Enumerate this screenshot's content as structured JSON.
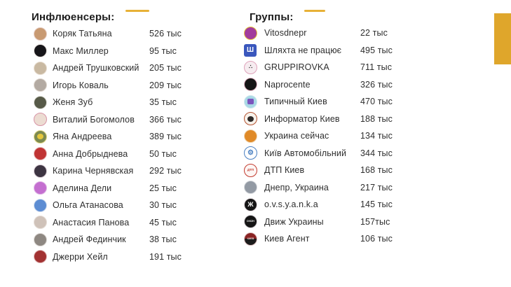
{
  "accent": {
    "dash_color": "#E7B137",
    "side_bar_color": "#DFA62B"
  },
  "influencers": {
    "title": "Инфлюенсеры:",
    "rows": [
      {
        "name": "Коряк Татьяна",
        "count": "526 тыс",
        "avatar": {
          "bg": "#c89a72",
          "ring": "#e6cdc4"
        }
      },
      {
        "name": "Макс Миллер",
        "count": "95 тыс",
        "avatar": {
          "bg": "#17161a",
          "ring": "#e8e2de"
        }
      },
      {
        "name": "Андрей Трушковский",
        "count": "205 тыс",
        "avatar": {
          "bg": "#c9b9a2",
          "ring": "#e8ddd0"
        }
      },
      {
        "name": "Игорь Коваль",
        "count": "209 тыс",
        "avatar": {
          "bg": "#b3aaa2",
          "ring": "#ded6ce"
        }
      },
      {
        "name": "Женя Зуб",
        "count": "35 тыс",
        "avatar": {
          "bg": "#575a48",
          "ring": "#dfe0d8"
        }
      },
      {
        "name": "Виталий Богомолов",
        "count": "366 тыс",
        "avatar": {
          "bg": "#ecdcd2",
          "ring": "#d793a5"
        }
      },
      {
        "name": "Яна Андреева",
        "count": "389 тыс",
        "avatar": {
          "bg": "#7c8a50",
          "ring": "#e4d98a",
          "inner": "#e6c73c"
        }
      },
      {
        "name": "Анна Добрыднева",
        "count": "50 тыс",
        "avatar": {
          "bg": "#c03434",
          "ring": "#e6b9b9"
        }
      },
      {
        "name": "Карина Чернявская",
        "count": "292 тыс",
        "avatar": {
          "bg": "#3d3542",
          "ring": "#d8ccd4"
        }
      },
      {
        "name": "Аделина Дели",
        "count": "25 тыс",
        "avatar": {
          "bg": "#c46fd0",
          "ring": "#e0b6e6"
        }
      },
      {
        "name": "Ольга Атанасова",
        "count": "30 тыс",
        "avatar": {
          "bg": "#5d8dd3",
          "ring": "#cfdcee"
        }
      },
      {
        "name": "Анастасия Панова",
        "count": "45 тыс",
        "avatar": {
          "bg": "#cfc2b9",
          "ring": "#e6ddd6"
        }
      },
      {
        "name": "Андрей Фединчик",
        "count": "38 тыс",
        "avatar": {
          "bg": "#8e8882",
          "ring": "#dcd8d4"
        }
      },
      {
        "name": "Джерри Хейл",
        "count": "191 тыс",
        "avatar": {
          "bg": "#a23232",
          "ring": "#e0b8b8"
        }
      }
    ]
  },
  "groups": {
    "title": "Группы:",
    "rows": [
      {
        "name": "Vitosdnepr",
        "count": "22 тыс",
        "avatar": {
          "bg": "#a23c9c",
          "ring": "#e5c53e"
        }
      },
      {
        "name": "Шляхта не працює",
        "count": "495 тыс",
        "avatar": {
          "bg": "#3a57bd",
          "shape": "square",
          "label": "Ш",
          "fg": "#ffffff",
          "label_size": "10px"
        }
      },
      {
        "name": "GRUPPIROVKA",
        "count": "711 тыс",
        "avatar": {
          "bg": "#f6ecf0",
          "ring": "#dfa3bb",
          "label": "∴",
          "fg": "#161616",
          "label_size": "8px"
        }
      },
      {
        "name": "Naprocente",
        "count": "326 тыс",
        "avatar": {
          "bg": "#161616",
          "ring": "#e4b6c6"
        }
      },
      {
        "name": "Типичный Киев",
        "count": "470 тыс",
        "avatar": {
          "bg": "#a9d9e5",
          "ring": "#cfe8ee",
          "inner": "#7b55bd",
          "inner_shape": "square"
        }
      },
      {
        "name": "Информатор Киев",
        "count": "188 тыс",
        "avatar": {
          "bg": "#f6f1ea",
          "ring": "#b45230",
          "inner": "#2e2a28"
        }
      },
      {
        "name": "Украина сейчас",
        "count": "134 тыс",
        "avatar": {
          "bg": "#e08a28",
          "ring": "#f0d5b0"
        }
      },
      {
        "name": "Київ Автомобільний",
        "count": "344 тыс",
        "avatar": {
          "bg": "#ffffff",
          "ring": "#4a80c2",
          "label": "⚙",
          "fg": "#4a80c2",
          "label_size": "10px"
        }
      },
      {
        "name": "ДТП Киев",
        "count": "168 тыс",
        "avatar": {
          "bg": "#fdf6f4",
          "ring": "#c23a2e",
          "label": "ДТП",
          "fg": "#c23a2e",
          "label_size": "4.5px"
        }
      },
      {
        "name": "Днепр, Украина",
        "count": "217 тыс",
        "avatar": {
          "bg": "#939aa4",
          "ring": "#d8dade"
        }
      },
      {
        "name": "o.v.s.y.a.n.k.a",
        "count": "145 тыс",
        "avatar": {
          "bg": "#151515",
          "ring": "#e0d8dc",
          "label": "Ж",
          "fg": "#ffffff",
          "label_size": "9px"
        }
      },
      {
        "name": "Движ Украины",
        "count": "157тыс",
        "avatar": {
          "bg": "#151515",
          "ring": "#d8d4d8",
          "label": "DVIZH",
          "fg": "#ffffff",
          "label_size": "3.5px"
        }
      },
      {
        "name": "Киев Агент",
        "count": "106 тыс",
        "avatar": {
          "bg": "#1c1c1c",
          "bg2": "#8a2424",
          "ring": "#e0c2c2",
          "label": "КИЕВ",
          "fg": "#e8d8d8",
          "label_size": "3.5px"
        }
      }
    ]
  }
}
